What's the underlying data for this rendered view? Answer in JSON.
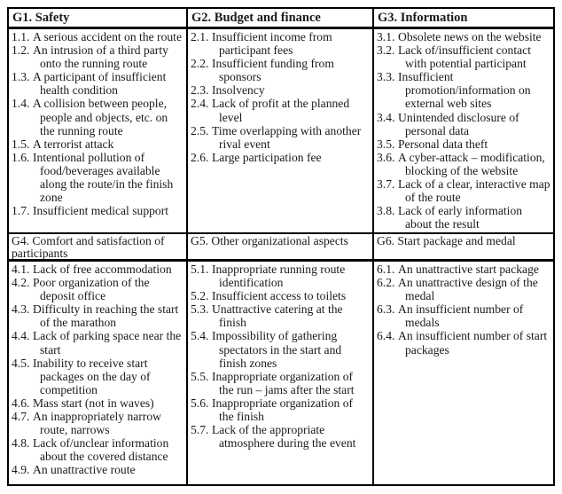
{
  "colors": {
    "border": "#000000",
    "text": "#1a1a1a",
    "background": "#ffffff"
  },
  "table": {
    "groups": [
      {
        "id": "g1",
        "header": "G1. Safety",
        "items": [
          {
            "num": "1.1.",
            "text": "A serious accident on the route"
          },
          {
            "num": "1.2.",
            "text": "An intrusion of a third party onto the running route"
          },
          {
            "num": "1.3.",
            "text": "A participant of insufficient health condition"
          },
          {
            "num": "1.4.",
            "text": "A collision between people, people and objects, etc. on the running route"
          },
          {
            "num": "1.5.",
            "text": "A terrorist attack"
          },
          {
            "num": "1.6.",
            "text": "Intentional pollution of food/beverages available along the route/in the finish zone"
          },
          {
            "num": "1.7.",
            "text": "Insufficient medical support"
          }
        ]
      },
      {
        "id": "g2",
        "header": "G2. Budget and finance",
        "items": [
          {
            "num": "2.1.",
            "text": "Insufficient income from participant fees"
          },
          {
            "num": "2.2.",
            "text": "Insufficient funding from sponsors"
          },
          {
            "num": "2.3.",
            "text": "Insolvency"
          },
          {
            "num": "2.4.",
            "text": "Lack of profit at the planned level"
          },
          {
            "num": "2.5.",
            "text": "Time overlapping with another rival event"
          },
          {
            "num": "2.6.",
            "text": "Large participation fee"
          }
        ]
      },
      {
        "id": "g3",
        "header": "G3. Information",
        "items": [
          {
            "num": "3.1.",
            "text": "Obsolete news on the website"
          },
          {
            "num": "3.2.",
            "text": "Lack of/insufficient contact with potential participant"
          },
          {
            "num": "3.3.",
            "text": "Insufficient promotion/information on external web sites"
          },
          {
            "num": "3.4.",
            "text": "Unintended disclosure of personal data"
          },
          {
            "num": "3.5.",
            "text": "Personal data theft"
          },
          {
            "num": "3.6.",
            "text": "A cyber-attack – modification, blocking of the website"
          },
          {
            "num": "3.7.",
            "text": "Lack of a clear, interactive map of the route"
          },
          {
            "num": "3.8.",
            "text": "Lack of early information about the result"
          }
        ]
      },
      {
        "id": "g4",
        "header": "G4. Comfort and satisfaction of participants",
        "items": [
          {
            "num": "4.1.",
            "text": "Lack of free accommodation"
          },
          {
            "num": "4.2.",
            "text": "Poor organization of the deposit office"
          },
          {
            "num": "4.3.",
            "text": "Difficulty in reaching the start of the marathon"
          },
          {
            "num": "4.4.",
            "text": "Lack of parking space near the start"
          },
          {
            "num": "4.5.",
            "text": "Inability to receive start packages on the day of competition"
          },
          {
            "num": "4.6.",
            "text": "Mass start (not in waves)"
          },
          {
            "num": "4.7.",
            "text": "An inappropriately narrow route, narrows"
          },
          {
            "num": "4.8.",
            "text": "Lack of/unclear information about the covered distance"
          },
          {
            "num": "4.9.",
            "text": "An unattractive route"
          }
        ]
      },
      {
        "id": "g5",
        "header": "G5. Other organizational aspects",
        "items": [
          {
            "num": "5.1.",
            "text": "Inappropriate running route identification"
          },
          {
            "num": "5.2.",
            "text": "Insufficient access to toilets"
          },
          {
            "num": "5.3.",
            "text": "Unattractive catering at the finish"
          },
          {
            "num": "5.4.",
            "text": "Impossibility of gathering spectators in the start and finish zones"
          },
          {
            "num": "5.5.",
            "text": "Inappropriate organization of the run – jams after the start"
          },
          {
            "num": "5.6.",
            "text": "Inappropriate organization of the finish"
          },
          {
            "num": "5.7.",
            "text": "Lack of the appropriate atmosphere during the event"
          }
        ]
      },
      {
        "id": "g6",
        "header": "G6. Start package and medal",
        "items": [
          {
            "num": "6.1.",
            "text": "An unattractive start package"
          },
          {
            "num": "6.2.",
            "text": "An unattractive design of the medal"
          },
          {
            "num": "6.3.",
            "text": "An insufficient number of medals"
          },
          {
            "num": "6.4.",
            "text": "An insufficient number of start packages"
          }
        ]
      }
    ]
  }
}
